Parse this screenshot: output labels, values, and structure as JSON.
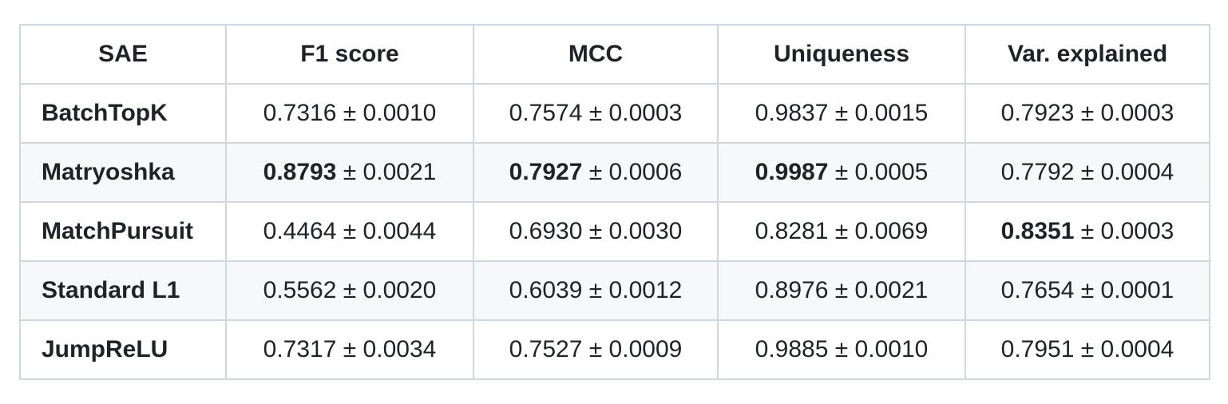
{
  "page": {
    "background_color": "#ffffff"
  },
  "table": {
    "border_color": "#d0d7de",
    "stripe_color": "#f6f8fa",
    "text_color": "#1f2328",
    "columns": [
      "SAE",
      "F1 score",
      "MCC",
      "Uniqueness",
      "Var. explained"
    ],
    "rows": [
      {
        "name": "BatchTopK",
        "cells": [
          {
            "mean": "0.7316",
            "pm": "± 0.0010",
            "bold": false
          },
          {
            "mean": "0.7574",
            "pm": "± 0.0003",
            "bold": false
          },
          {
            "mean": "0.9837",
            "pm": "± 0.0015",
            "bold": false
          },
          {
            "mean": "0.7923",
            "pm": "± 0.0003",
            "bold": false
          }
        ]
      },
      {
        "name": "Matryoshka",
        "cells": [
          {
            "mean": "0.8793",
            "pm": "± 0.0021",
            "bold": true
          },
          {
            "mean": "0.7927",
            "pm": "± 0.0006",
            "bold": true
          },
          {
            "mean": "0.9987",
            "pm": "± 0.0005",
            "bold": true
          },
          {
            "mean": "0.7792",
            "pm": "± 0.0004",
            "bold": false
          }
        ]
      },
      {
        "name": "MatchPursuit",
        "cells": [
          {
            "mean": "0.4464",
            "pm": "± 0.0044",
            "bold": false
          },
          {
            "mean": "0.6930",
            "pm": "± 0.0030",
            "bold": false
          },
          {
            "mean": "0.8281",
            "pm": "± 0.0069",
            "bold": false
          },
          {
            "mean": "0.8351",
            "pm": "± 0.0003",
            "bold": true
          }
        ]
      },
      {
        "name": "Standard L1",
        "cells": [
          {
            "mean": "0.5562",
            "pm": "± 0.0020",
            "bold": false
          },
          {
            "mean": "0.6039",
            "pm": "± 0.0012",
            "bold": false
          },
          {
            "mean": "0.8976",
            "pm": "± 0.0021",
            "bold": false
          },
          {
            "mean": "0.7654",
            "pm": "± 0.0001",
            "bold": false
          }
        ]
      },
      {
        "name": "JumpReLU",
        "cells": [
          {
            "mean": "0.7317",
            "pm": "± 0.0034",
            "bold": false
          },
          {
            "mean": "0.7527",
            "pm": "± 0.0009",
            "bold": false
          },
          {
            "mean": "0.9885",
            "pm": "± 0.0010",
            "bold": false
          },
          {
            "mean": "0.7951",
            "pm": "± 0.0004",
            "bold": false
          }
        ]
      }
    ]
  }
}
